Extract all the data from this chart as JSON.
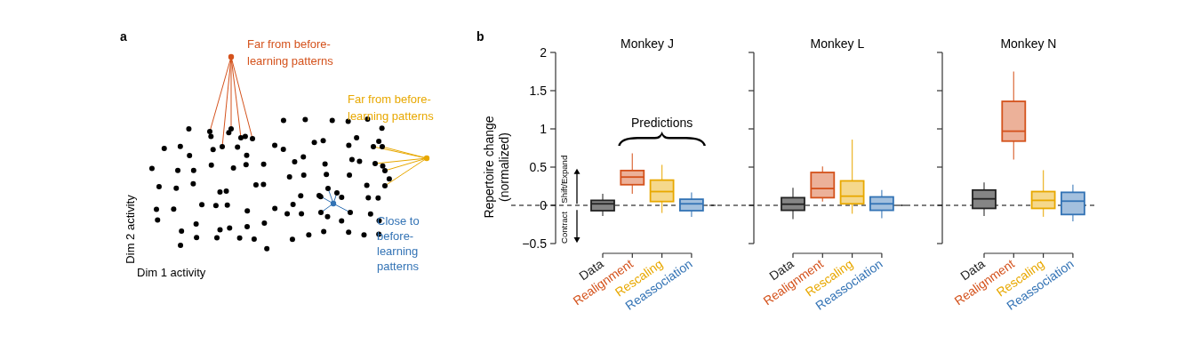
{
  "chart_data": [
    {
      "type": "other",
      "xlabel": "Dim 1 activity",
      "ylabel": "Dim 2 activity",
      "annotations": [
        "a",
        "Far from before-\nlearning patterns",
        "Far from before-\nlearning patterns",
        "Close to\nbefore-\nlearning\npatterns"
      ]
    },
    {
      "type": "box",
      "title": "Monkey J",
      "ylabel": "Repertoire change\n(normalized)",
      "categories": [
        "Data",
        "Realignment",
        "Rescaling",
        "Reassociation"
      ],
      "colors": [
        "#222222",
        "#d4521c",
        "#e8a800",
        "#3373b5"
      ],
      "boxes": [
        {
          "low": -0.14,
          "q1": -0.07,
          "median": 0.02,
          "q3": 0.065,
          "high": 0.15
        },
        {
          "low": 0.15,
          "q1": 0.27,
          "median": 0.37,
          "q3": 0.455,
          "high": 0.68
        },
        {
          "low": -0.1,
          "q1": 0.05,
          "median": 0.18,
          "q3": 0.33,
          "high": 0.53
        },
        {
          "low": -0.15,
          "q1": -0.07,
          "median": 0.02,
          "q3": 0.08,
          "high": 0.17
        }
      ],
      "ylim": [
        -0.5,
        2
      ],
      "yticks": [
        -0.5,
        0,
        0.5,
        1,
        1.5,
        2
      ],
      "ref_lines": [
        {
          "axis": "y",
          "value": 0,
          "line_style": "dashed"
        }
      ],
      "annotations": [
        "b",
        "Predictions",
        "Shift/Expand",
        "Contract"
      ]
    },
    {
      "type": "box",
      "title": "Monkey L",
      "categories": [
        "Data",
        "Realignment",
        "Rescaling",
        "Reassociation"
      ],
      "colors": [
        "#222222",
        "#d4521c",
        "#e8a800",
        "#3373b5"
      ],
      "boxes": [
        {
          "low": -0.18,
          "q1": -0.065,
          "median": 0.015,
          "q3": 0.1,
          "high": 0.23
        },
        {
          "low": 0.05,
          "q1": 0.1,
          "median": 0.22,
          "q3": 0.43,
          "high": 0.51
        },
        {
          "low": -0.11,
          "q1": 0.02,
          "median": 0.12,
          "q3": 0.32,
          "high": 0.86
        },
        {
          "low": -0.17,
          "q1": -0.065,
          "median": 0.02,
          "q3": 0.11,
          "high": 0.2
        }
      ],
      "ylim": [
        -0.5,
        2
      ],
      "yticks": [
        -0.5,
        0,
        0.5,
        1,
        1.5,
        2
      ],
      "tick_labels": "x",
      "ref_lines": [
        {
          "axis": "y",
          "value": 0,
          "line_style": "dashed"
        }
      ]
    },
    {
      "type": "box",
      "title": "Monkey N",
      "categories": [
        "Data",
        "Realignment",
        "Rescaling",
        "Reassociation"
      ],
      "colors": [
        "#222222",
        "#d4521c",
        "#e8a800",
        "#3373b5"
      ],
      "boxes": [
        {
          "low": -0.14,
          "q1": -0.04,
          "median": 0.085,
          "q3": 0.2,
          "high": 0.3
        },
        {
          "low": 0.6,
          "q1": 0.84,
          "median": 0.97,
          "q3": 1.36,
          "high": 1.75
        },
        {
          "low": -0.15,
          "q1": -0.04,
          "median": 0.065,
          "q3": 0.18,
          "high": 0.46
        },
        {
          "low": -0.21,
          "q1": -0.12,
          "median": 0.055,
          "q3": 0.17,
          "high": 0.27
        }
      ],
      "ylim": [
        -0.5,
        2
      ],
      "yticks": [
        -0.5,
        0,
        0.5,
        1,
        1.5,
        2
      ],
      "tick_labels": "x",
      "ref_lines": [
        {
          "axis": "y",
          "value": 0,
          "line_style": "dashed"
        }
      ]
    }
  ]
}
